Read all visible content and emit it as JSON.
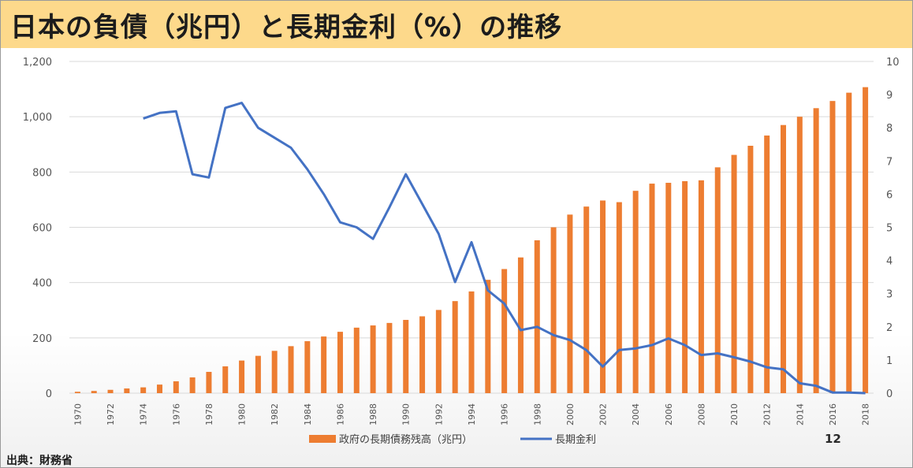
{
  "header": {
    "title": "日本の負債（兆円）と長期金利（%）の推移"
  },
  "footer": {
    "source": "出典：財務省",
    "page_number": "12"
  },
  "colors": {
    "bar": "#ed7d31",
    "line": "#4472c4",
    "title_band": "#fdd98b",
    "grid": "#d9d9d9"
  },
  "chart_data": {
    "type": "bar",
    "title": "",
    "legend_position": "bottom",
    "grid": true,
    "x": [
      1970,
      1971,
      1972,
      1973,
      1974,
      1975,
      1976,
      1977,
      1978,
      1979,
      1980,
      1981,
      1982,
      1983,
      1984,
      1985,
      1986,
      1987,
      1988,
      1989,
      1990,
      1991,
      1992,
      1993,
      1994,
      1995,
      1996,
      1997,
      1998,
      1999,
      2000,
      2001,
      2002,
      2003,
      2004,
      2005,
      2006,
      2007,
      2008,
      2009,
      2010,
      2011,
      2012,
      2013,
      2014,
      2015,
      2016,
      2017,
      2018
    ],
    "x_tick_labels": [
      "1970",
      "1972",
      "1974",
      "1976",
      "1978",
      "1980",
      "1982",
      "1984",
      "1986",
      "1988",
      "1990",
      "1992",
      "1994",
      "1996",
      "1998",
      "2000",
      "2002",
      "2004",
      "2006",
      "2008",
      "2010",
      "2012",
      "2014",
      "2016",
      "2018"
    ],
    "y_left": {
      "ylim": [
        0,
        1200
      ],
      "ticks": [
        "0",
        "200",
        "400",
        "600",
        "800",
        "1,000",
        "1,200"
      ]
    },
    "y_right": {
      "ylim": [
        0,
        10
      ],
      "ticks": [
        "0",
        "1",
        "2",
        "3",
        "4",
        "5",
        "6",
        "7",
        "8",
        "9",
        "10"
      ]
    },
    "series": [
      {
        "name": "政府の長期債務残高（兆円）",
        "type": "bar",
        "axis": "left",
        "values": [
          5,
          8,
          12,
          17,
          21,
          31,
          43,
          57,
          77,
          97,
          118,
          135,
          153,
          170,
          188,
          205,
          222,
          237,
          245,
          254,
          265,
          278,
          301,
          333,
          368,
          410,
          449,
          491,
          553,
          600,
          646,
          675,
          697,
          691,
          732,
          758,
          761,
          767,
          770,
          817,
          862,
          895,
          932,
          970,
          1000,
          1031,
          1057,
          1087,
          1107
        ]
      },
      {
        "name": "長期金利",
        "type": "line",
        "axis": "right",
        "values": [
          null,
          null,
          null,
          null,
          8.28,
          8.45,
          8.5,
          6.6,
          6.5,
          8.6,
          8.75,
          8.0,
          7.7,
          7.4,
          6.75,
          6.0,
          5.15,
          5.0,
          4.65,
          5.6,
          6.6,
          5.7,
          4.8,
          3.35,
          4.55,
          3.1,
          2.7,
          1.9,
          2.0,
          1.75,
          1.6,
          1.3,
          0.8,
          1.3,
          1.35,
          1.45,
          1.65,
          1.45,
          1.15,
          1.2,
          1.08,
          0.95,
          0.78,
          0.72,
          0.3,
          0.22,
          0.02,
          0.02,
          0.0
        ]
      }
    ]
  }
}
